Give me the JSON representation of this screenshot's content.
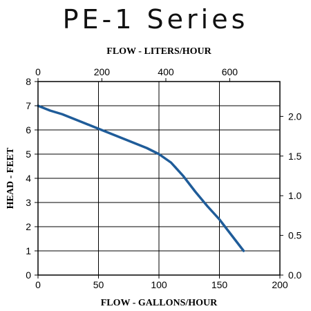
{
  "chart_data": {
    "type": "line",
    "title": "PE-1 Series",
    "x_top_label": "FLOW - LITERS/HOUR",
    "xlabel": "FLOW - GALLONS/HOUR",
    "ylabel": "HEAD - FEET",
    "xlim": [
      0,
      200
    ],
    "ylim": [
      0,
      8
    ],
    "x_ticks": [
      "0",
      "50",
      "100",
      "150",
      "200"
    ],
    "y_ticks": [
      "0",
      "1",
      "2",
      "3",
      "4",
      "5",
      "6",
      "7",
      "8"
    ],
    "x_top_ticks": [
      {
        "label": "0",
        "gph": 0
      },
      {
        "label": "200",
        "gph": 52.8
      },
      {
        "label": "400",
        "gph": 105.7
      },
      {
        "label": "600",
        "gph": 158.5
      }
    ],
    "y_right_ticks": [
      {
        "label": "0.0",
        "feet": 0
      },
      {
        "label": "0.5",
        "feet": 1.64
      },
      {
        "label": "1.0",
        "feet": 3.28
      },
      {
        "label": "1.5",
        "feet": 4.92
      },
      {
        "label": "2.0",
        "feet": 6.56
      }
    ],
    "grid": true,
    "series": [
      {
        "color": "#1f5c99",
        "x": [
          0,
          10,
          20,
          30,
          40,
          50,
          60,
          70,
          80,
          90,
          100,
          110,
          120,
          130,
          140,
          150,
          160,
          170
        ],
        "y": [
          7.0,
          6.8,
          6.65,
          6.45,
          6.25,
          6.05,
          5.85,
          5.65,
          5.45,
          5.25,
          5.0,
          4.65,
          4.1,
          3.45,
          2.85,
          2.3,
          1.65,
          1.0
        ]
      }
    ]
  }
}
